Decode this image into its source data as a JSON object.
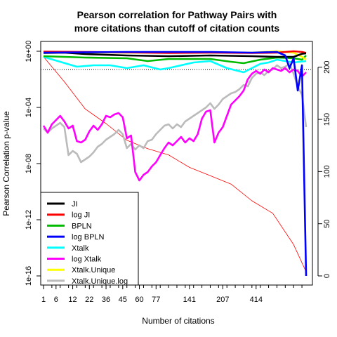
{
  "chart_data": {
    "type": "line",
    "title_line1": "Pearson correlation for Pathway Pairs with",
    "title_line2": "more citations than cutoff of citation counts",
    "xlabel": "Number of citations",
    "ylabel": "Pearson Correlation p-value",
    "x_tick_labels": [
      "1",
      "6",
      "12",
      "22",
      "36",
      "45",
      "60",
      "77",
      "141",
      "207",
      "414"
    ],
    "y_left_tick_labels": [
      "1e-16",
      "1e-12",
      "1e-08",
      "1e-04",
      "1e+00"
    ],
    "y_left_scale": "log",
    "y_left_range_log10": [
      -16,
      0
    ],
    "y_right_tick_labels": [
      "0",
      "50",
      "100",
      "150",
      "200"
    ],
    "y_right_range": [
      0,
      220
    ],
    "n_points": 64,
    "x_range_index": [
      0,
      63
    ],
    "reference_line": {
      "style": "dotted",
      "log10_p": -1.3,
      "meaning": "p = 0.05"
    },
    "legend_position": "bottom-left",
    "grid": false,
    "series": [
      {
        "name": "JI",
        "color": "#000000",
        "axis": "left",
        "log10_values": [
          [
            0,
            -0.12
          ],
          [
            5,
            -0.1
          ],
          [
            10,
            -0.2
          ],
          [
            20,
            -0.3
          ],
          [
            30,
            -0.35
          ],
          [
            40,
            -0.3
          ],
          [
            50,
            -0.35
          ],
          [
            60,
            -0.4
          ],
          [
            56,
            -0.4
          ],
          [
            62,
            -0.18
          ],
          [
            63,
            -0.15
          ]
        ]
      },
      {
        "name": "log JI",
        "color": "#ff0000",
        "axis": "left",
        "log10_values": [
          [
            0,
            -0.03
          ],
          [
            10,
            -0.05
          ],
          [
            20,
            -0.08
          ],
          [
            30,
            -0.12
          ],
          [
            40,
            -0.1
          ],
          [
            50,
            -0.12
          ],
          [
            56,
            -0.1
          ],
          [
            60,
            0.0
          ],
          [
            62,
            -0.05
          ],
          [
            63,
            -0.12
          ]
        ]
      },
      {
        "name": "BPLN",
        "color": "#00bb00",
        "axis": "left",
        "log10_values": [
          [
            0,
            -0.35
          ],
          [
            10,
            -0.45
          ],
          [
            20,
            -0.5
          ],
          [
            25,
            -0.7
          ],
          [
            30,
            -0.55
          ],
          [
            40,
            -0.55
          ],
          [
            45,
            -0.75
          ],
          [
            48,
            -0.85
          ],
          [
            52,
            -0.6
          ],
          [
            56,
            -0.45
          ],
          [
            60,
            -0.5
          ],
          [
            62,
            -0.6
          ],
          [
            63,
            -0.3
          ]
        ]
      },
      {
        "name": "log BPLN",
        "color": "#0000ff",
        "axis": "left",
        "log10_values": [
          [
            0,
            -0.1
          ],
          [
            20,
            -0.05
          ],
          [
            30,
            -0.05
          ],
          [
            40,
            -0.05
          ],
          [
            50,
            -0.1
          ],
          [
            56,
            -0.05
          ],
          [
            58,
            -0.3
          ],
          [
            59,
            -1.2
          ],
          [
            60,
            -0.5
          ],
          [
            61,
            -2.8
          ],
          [
            62,
            -1.0
          ],
          [
            63,
            -16
          ]
        ]
      },
      {
        "name": "Xtalk",
        "color": "#00ffff",
        "axis": "left",
        "log10_values": [
          [
            0,
            -0.4
          ],
          [
            8,
            -1.1
          ],
          [
            12,
            -1.0
          ],
          [
            16,
            -1.0
          ],
          [
            20,
            -1.2
          ],
          [
            24,
            -1.0
          ],
          [
            28,
            -1.3
          ],
          [
            30,
            -1.2
          ],
          [
            36,
            -0.8
          ],
          [
            40,
            -0.7
          ],
          [
            44,
            -1.2
          ],
          [
            48,
            -1.5
          ],
          [
            52,
            -0.9
          ],
          [
            54,
            -0.8
          ],
          [
            56,
            -0.6
          ],
          [
            60,
            -0.8
          ],
          [
            63,
            -0.7
          ]
        ]
      },
      {
        "name": "log Xtalk",
        "color": "#ff00ff",
        "axis": "left",
        "log10_values": [
          [
            0,
            -5.3
          ],
          [
            1,
            -5.8
          ],
          [
            2,
            -5.2
          ],
          [
            3,
            -4.9
          ],
          [
            4,
            -4.6
          ],
          [
            5,
            -5.0
          ],
          [
            6,
            -5.5
          ],
          [
            7,
            -5.3
          ],
          [
            8,
            -6.4
          ],
          [
            9,
            -6.5
          ],
          [
            10,
            -6.3
          ],
          [
            11,
            -5.7
          ],
          [
            12,
            -5.3
          ],
          [
            13,
            -5.6
          ],
          [
            14,
            -5.2
          ],
          [
            15,
            -4.6
          ],
          [
            16,
            -4.7
          ],
          [
            17,
            -4.5
          ],
          [
            18,
            -4.4
          ],
          [
            19,
            -4.7
          ],
          [
            20,
            -6.2
          ],
          [
            21,
            -6.0
          ],
          [
            22,
            -8.6
          ],
          [
            23,
            -9.2
          ],
          [
            24,
            -8.8
          ],
          [
            25,
            -8.6
          ],
          [
            26,
            -8.2
          ],
          [
            27,
            -7.9
          ],
          [
            28,
            -7.4
          ],
          [
            29,
            -6.9
          ],
          [
            30,
            -6.5
          ],
          [
            31,
            -6.7
          ],
          [
            32,
            -6.4
          ],
          [
            33,
            -6.1
          ],
          [
            34,
            -6.5
          ],
          [
            35,
            -6.2
          ],
          [
            36,
            -6.4
          ],
          [
            37,
            -5.9
          ],
          [
            38,
            -4.8
          ],
          [
            39,
            -4.3
          ],
          [
            40,
            -4.2
          ],
          [
            41,
            -6.5
          ],
          [
            42,
            -5.8
          ],
          [
            43,
            -5.4
          ],
          [
            44,
            -4.6
          ],
          [
            45,
            -3.8
          ],
          [
            46,
            -3.5
          ],
          [
            47,
            -3.2
          ],
          [
            48,
            -2.8
          ],
          [
            49,
            -2.0
          ],
          [
            50,
            -1.6
          ],
          [
            51,
            -1.4
          ],
          [
            52,
            -1.6
          ],
          [
            53,
            -1.3
          ],
          [
            54,
            -1.5
          ],
          [
            55,
            -1.2
          ],
          [
            56,
            -1.3
          ],
          [
            57,
            -1.4
          ],
          [
            58,
            -1.2
          ],
          [
            59,
            -1.5
          ],
          [
            60,
            -1.3
          ],
          [
            61,
            -1.4
          ],
          [
            62,
            -1.8
          ],
          [
            63,
            -1.5
          ]
        ]
      },
      {
        "name": "Xtalk.Unique",
        "color": "#ffff00",
        "axis": "left",
        "log10_values": [
          [
            0,
            -0.05
          ],
          [
            20,
            -0.1
          ],
          [
            30,
            -0.1
          ],
          [
            40,
            -0.08
          ],
          [
            50,
            -0.1
          ],
          [
            56,
            0.0
          ],
          [
            60,
            -0.1
          ],
          [
            62,
            -0.4
          ],
          [
            63,
            -0.6
          ]
        ]
      },
      {
        "name": "Xtalk.Unique.log",
        "color": "#bbbbbb",
        "axis": "left",
        "log10_values": [
          [
            0,
            -5.5
          ],
          [
            1,
            -5.8
          ],
          [
            2,
            -5.5
          ],
          [
            3,
            -5.3
          ],
          [
            4,
            -5.1
          ],
          [
            5,
            -5.4
          ],
          [
            6,
            -7.4
          ],
          [
            7,
            -7.1
          ],
          [
            8,
            -7.3
          ],
          [
            9,
            -7.9
          ],
          [
            10,
            -7.7
          ],
          [
            11,
            -7.5
          ],
          [
            12,
            -7.2
          ],
          [
            13,
            -6.8
          ],
          [
            14,
            -6.6
          ],
          [
            15,
            -6.3
          ],
          [
            16,
            -6.1
          ],
          [
            17,
            -5.9
          ],
          [
            18,
            -5.6
          ],
          [
            19,
            -5.9
          ],
          [
            20,
            -6.9
          ],
          [
            21,
            -6.6
          ],
          [
            22,
            -7.0
          ],
          [
            23,
            -6.7
          ],
          [
            24,
            -6.9
          ],
          [
            25,
            -6.4
          ],
          [
            26,
            -6.3
          ],
          [
            27,
            -5.9
          ],
          [
            28,
            -5.6
          ],
          [
            29,
            -5.3
          ],
          [
            30,
            -5.2
          ],
          [
            31,
            -5.5
          ],
          [
            32,
            -5.2
          ],
          [
            33,
            -5.4
          ],
          [
            34,
            -5.0
          ],
          [
            35,
            -4.8
          ],
          [
            36,
            -4.6
          ],
          [
            37,
            -4.4
          ],
          [
            38,
            -4.2
          ],
          [
            39,
            -4.0
          ],
          [
            40,
            -3.7
          ],
          [
            41,
            -4.1
          ],
          [
            42,
            -3.8
          ],
          [
            43,
            -3.4
          ],
          [
            44,
            -3.2
          ],
          [
            45,
            -3.0
          ],
          [
            46,
            -2.9
          ],
          [
            47,
            -2.7
          ],
          [
            48,
            -2.4
          ],
          [
            49,
            -2.5
          ],
          [
            50,
            -1.9
          ],
          [
            51,
            -1.6
          ],
          [
            52,
            -1.5
          ],
          [
            53,
            -1.7
          ],
          [
            54,
            -1.4
          ],
          [
            55,
            -1.3
          ],
          [
            56,
            -1.0
          ],
          [
            57,
            -1.2
          ],
          [
            58,
            -1.1
          ],
          [
            59,
            -0.9
          ],
          [
            60,
            -1.6
          ],
          [
            61,
            -2.5
          ],
          [
            62,
            -3.1
          ],
          [
            63,
            -5.4
          ]
        ]
      },
      {
        "name": "citation count",
        "color": "#ff0000",
        "axis": "right",
        "legend": false,
        "values": [
          [
            0,
            210
          ],
          [
            5,
            186
          ],
          [
            10,
            160
          ],
          [
            15,
            146
          ],
          [
            20,
            130
          ],
          [
            25,
            122
          ],
          [
            30,
            116
          ],
          [
            35,
            104
          ],
          [
            40,
            96
          ],
          [
            45,
            88
          ],
          [
            50,
            72
          ],
          [
            55,
            60
          ],
          [
            60,
            30
          ],
          [
            63,
            4
          ]
        ]
      }
    ]
  }
}
